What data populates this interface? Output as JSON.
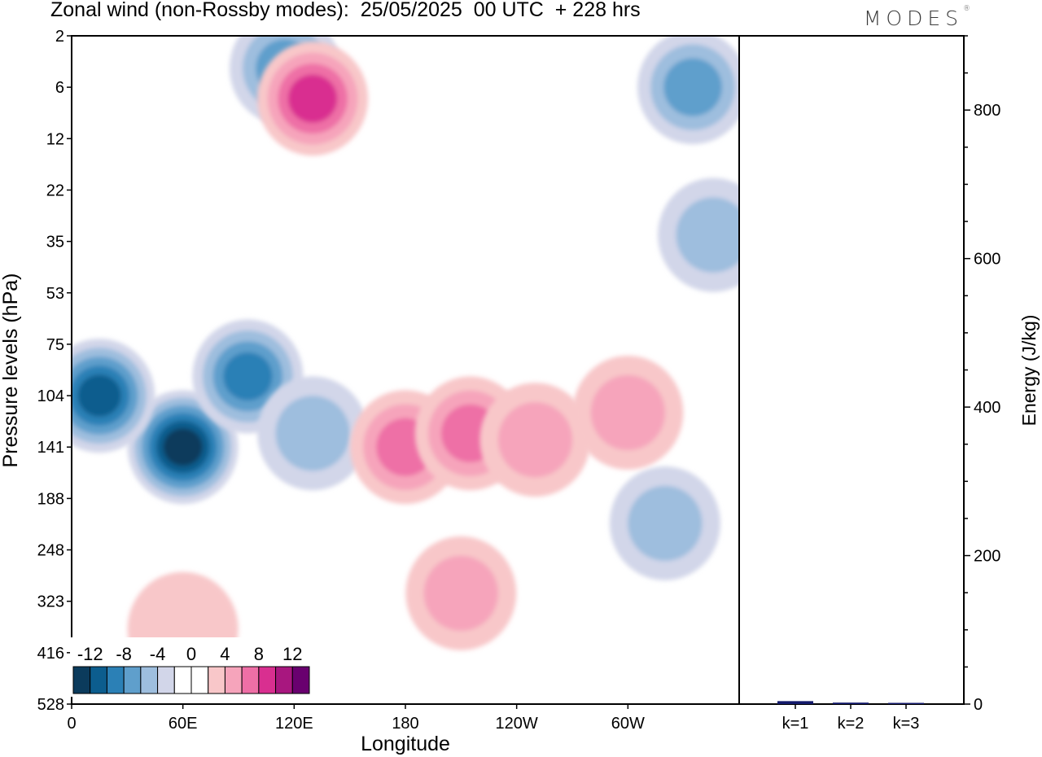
{
  "header": {
    "title": "Zonal wind (non-Rossby modes):  25/05/2025  00 UTC  + 228 hrs",
    "logo": "MODES"
  },
  "chart_data": [
    {
      "type": "heatmap",
      "title": "Zonal wind (non-Rossby modes):  25/05/2025  00 UTC  + 228 hrs",
      "xlabel": "Longitude",
      "ylabel": "Pressure levels (hPa)",
      "x_ticks": [
        "0",
        "60E",
        "120E",
        "180",
        "120W",
        "60W"
      ],
      "y_ticks": [
        "2",
        "6",
        "12",
        "22",
        "35",
        "53",
        "75",
        "104",
        "141",
        "188",
        "248",
        "323",
        "416",
        "528"
      ],
      "colorbar": {
        "labels": [
          "-12",
          "-8",
          "-4",
          "0",
          "4",
          "8",
          "12"
        ],
        "colors": [
          "#0b3b5c",
          "#0c5d8e",
          "#2b80b6",
          "#5f9fcc",
          "#9ebede",
          "#d2d6e9",
          "#ffffff",
          "#ffffff",
          "#f8c7c9",
          "#f6a4bb",
          "#ee6fa6",
          "#d92f90",
          "#a8177f",
          "#69006f"
        ]
      },
      "features": [
        {
          "sign": "negative",
          "level": 6,
          "lon_deg": 60,
          "p_hpa": 141
        },
        {
          "sign": "negative",
          "level": 5,
          "lon_deg": 15,
          "p_hpa": 104
        },
        {
          "sign": "negative",
          "level": 4,
          "lon_deg": 95,
          "p_hpa": 92
        },
        {
          "sign": "negative",
          "level": 3,
          "lon_deg": 335,
          "p_hpa": 6
        },
        {
          "sign": "negative",
          "level": 3,
          "lon_deg": 115,
          "p_hpa": 4
        },
        {
          "sign": "negative",
          "level": 2,
          "lon_deg": 130,
          "p_hpa": 130
        },
        {
          "sign": "negative",
          "level": 2,
          "lon_deg": 320,
          "p_hpa": 215
        },
        {
          "sign": "negative",
          "level": 2,
          "lon_deg": 346,
          "p_hpa": 33
        },
        {
          "sign": "positive",
          "level": 3,
          "lon_deg": 180,
          "p_hpa": 141
        },
        {
          "sign": "positive",
          "level": 3,
          "lon_deg": 215,
          "p_hpa": 130
        },
        {
          "sign": "positive",
          "level": 2,
          "lon_deg": 250,
          "p_hpa": 135
        },
        {
          "sign": "positive",
          "level": 2,
          "lon_deg": 300,
          "p_hpa": 115
        },
        {
          "sign": "positive",
          "level": 2,
          "lon_deg": 210,
          "p_hpa": 310
        },
        {
          "sign": "positive",
          "level": 4,
          "lon_deg": 130,
          "p_hpa": 7
        },
        {
          "sign": "positive",
          "level": 1,
          "lon_deg": 60,
          "p_hpa": 370
        }
      ]
    },
    {
      "type": "bar",
      "ylabel": "Energy (J/kg)",
      "categories": [
        "k=1",
        "k=2",
        "k=3"
      ],
      "values": [
        4,
        2,
        1
      ],
      "ylim": [
        0,
        900
      ],
      "y_ticks": [
        "0",
        "200",
        "400",
        "600",
        "800"
      ],
      "bar_color": "#141a6b"
    }
  ]
}
